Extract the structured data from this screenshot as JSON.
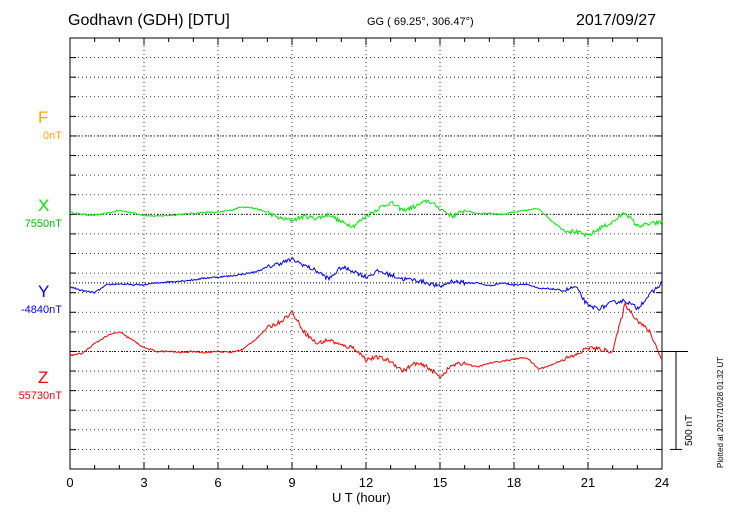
{
  "header": {
    "title": "Godhavn (GDH)  [DTU]",
    "coords": "GG ( 69.25°, 306.47°)",
    "date": "2017/09/27",
    "plotted": "Plotted at 2017/10/28 01:32 UT"
  },
  "chart_data": {
    "type": "line",
    "xlabel": "U T (hour)",
    "xlim": [
      0,
      24
    ],
    "xticks": [
      "0",
      "3",
      "6",
      "9",
      "12",
      "15",
      "18",
      "21",
      "24"
    ],
    "ylim_nT": [
      -1700,
      500
    ],
    "scale_bar": {
      "label": "500 nT",
      "value_nT": 500
    },
    "grid": true,
    "components": [
      {
        "name": "F",
        "baseline_label": "0nT",
        "baseline_offset_nT": 0,
        "color": "#ffa500",
        "x": [],
        "y": []
      },
      {
        "name": "X",
        "baseline_label": "7550nT",
        "baseline_offset_nT": -400,
        "color": "#00ee00",
        "x": [
          0,
          0.5,
          1,
          1.5,
          2,
          2.5,
          3,
          3.5,
          4,
          4.5,
          5,
          5.5,
          6,
          6.5,
          7,
          7.5,
          8,
          8.5,
          9,
          9.5,
          10,
          10.5,
          11,
          11.5,
          12,
          12.5,
          13,
          13.5,
          14,
          14.5,
          15,
          15.5,
          16,
          16.5,
          17,
          17.5,
          18,
          18.5,
          19,
          19.5,
          20,
          20.5,
          21,
          21.5,
          22,
          22.5,
          23,
          23.5,
          24
        ],
        "y": [
          10,
          0,
          -5,
          5,
          20,
          10,
          -5,
          -10,
          -5,
          0,
          5,
          10,
          10,
          20,
          40,
          30,
          10,
          -20,
          -30,
          -10,
          -20,
          0,
          -40,
          -60,
          -10,
          30,
          60,
          20,
          40,
          70,
          30,
          -10,
          20,
          5,
          5,
          0,
          10,
          20,
          30,
          -30,
          -80,
          -90,
          -110,
          -70,
          -40,
          10,
          -60,
          -50,
          -40
        ]
      },
      {
        "name": "Y",
        "baseline_label": "-4840nT",
        "baseline_offset_nT": -750,
        "color": "#0000ff",
        "x": [
          0,
          0.5,
          1,
          1.5,
          2,
          2.5,
          3,
          3.5,
          4,
          4.5,
          5,
          5.5,
          6,
          6.5,
          7,
          7.5,
          8,
          8.5,
          9,
          9.5,
          10,
          10.5,
          11,
          11.5,
          12,
          12.5,
          13,
          13.5,
          14,
          14.5,
          15,
          15.5,
          16,
          16.5,
          17,
          17.5,
          18,
          18.5,
          19,
          19.5,
          20,
          20.5,
          21,
          21.5,
          22,
          22.5,
          23,
          23.5,
          24
        ],
        "y": [
          -20,
          -40,
          -50,
          -10,
          -5,
          -10,
          -10,
          0,
          5,
          10,
          15,
          25,
          30,
          35,
          45,
          55,
          80,
          100,
          120,
          90,
          60,
          20,
          80,
          60,
          30,
          60,
          40,
          20,
          15,
          0,
          -20,
          10,
          0,
          0,
          -15,
          0,
          -10,
          -5,
          -30,
          -30,
          -40,
          -20,
          -120,
          -130,
          -100,
          -90,
          -130,
          -60,
          0
        ]
      },
      {
        "name": "Z",
        "baseline_label": "55730nT",
        "baseline_offset_nT": -1100,
        "color": "#ff0000",
        "x": [
          0,
          0.5,
          1,
          1.5,
          2,
          2.5,
          3,
          3.5,
          4,
          4.5,
          5,
          5.5,
          6,
          6.5,
          7,
          7.5,
          8,
          8.5,
          9,
          9.5,
          10,
          10.5,
          11,
          11.5,
          12,
          12.5,
          13,
          13.5,
          14,
          14.5,
          15,
          15.5,
          16,
          16.5,
          17,
          17.5,
          18,
          18.5,
          19,
          19.5,
          20,
          20.5,
          21,
          21.5,
          22,
          22.5,
          23,
          23.5,
          24
        ],
        "y": [
          -20,
          -10,
          40,
          80,
          100,
          60,
          20,
          0,
          0,
          -5,
          0,
          -5,
          0,
          -5,
          10,
          60,
          120,
          150,
          200,
          100,
          40,
          60,
          30,
          20,
          -40,
          -30,
          -50,
          -100,
          -60,
          -80,
          -130,
          -70,
          -60,
          -80,
          -60,
          -50,
          -40,
          -30,
          -90,
          -70,
          -40,
          -20,
          20,
          10,
          0,
          240,
          160,
          100,
          -40
        ]
      }
    ]
  }
}
